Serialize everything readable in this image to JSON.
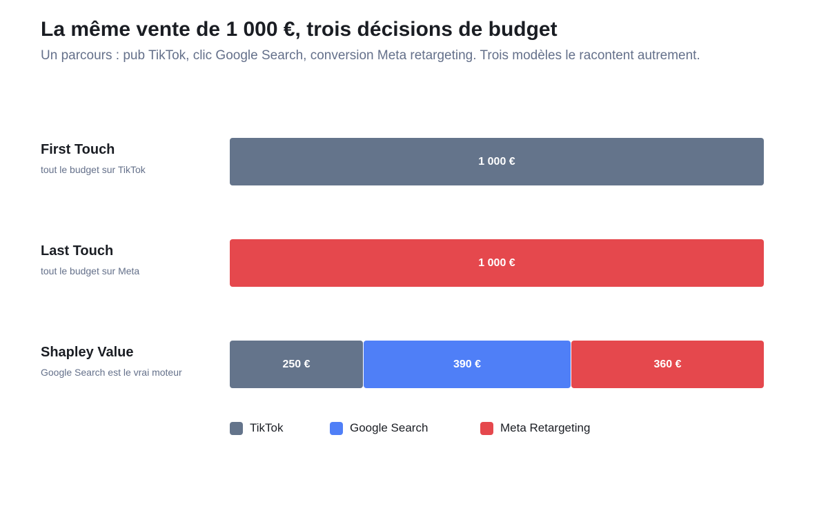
{
  "title": "La même vente de 1 000 €, trois décisions de budget",
  "subtitle": "Un parcours : pub TikTok, clic Google Search, conversion Meta retargeting. Trois modèles le racontent autrement.",
  "colors": {
    "tiktok": "#64748b",
    "google": "#4f7ff7",
    "meta": "#e5484d"
  },
  "chart_data": {
    "type": "bar",
    "stacked": true,
    "orientation": "horizontal",
    "total": 1000,
    "unit": "€",
    "categories": [
      "First Touch",
      "Last Touch",
      "Shapley Value"
    ],
    "category_descriptions": [
      "tout le budget sur TikTok",
      "tout le budget sur Meta",
      "Google Search est le vrai moteur"
    ],
    "series": [
      {
        "name": "TikTok",
        "key": "tiktok",
        "values": [
          1000,
          0,
          250
        ]
      },
      {
        "name": "Google Search",
        "key": "google",
        "values": [
          0,
          0,
          390
        ]
      },
      {
        "name": "Meta Retargeting",
        "key": "meta",
        "values": [
          0,
          1000,
          360
        ]
      }
    ],
    "segment_labels": [
      [
        "1 000 €",
        "",
        ""
      ],
      [
        "",
        "",
        "1 000 €"
      ],
      [
        "250 €",
        "390 €",
        "360 €"
      ]
    ],
    "legend_position": "bottom",
    "grid": false
  }
}
